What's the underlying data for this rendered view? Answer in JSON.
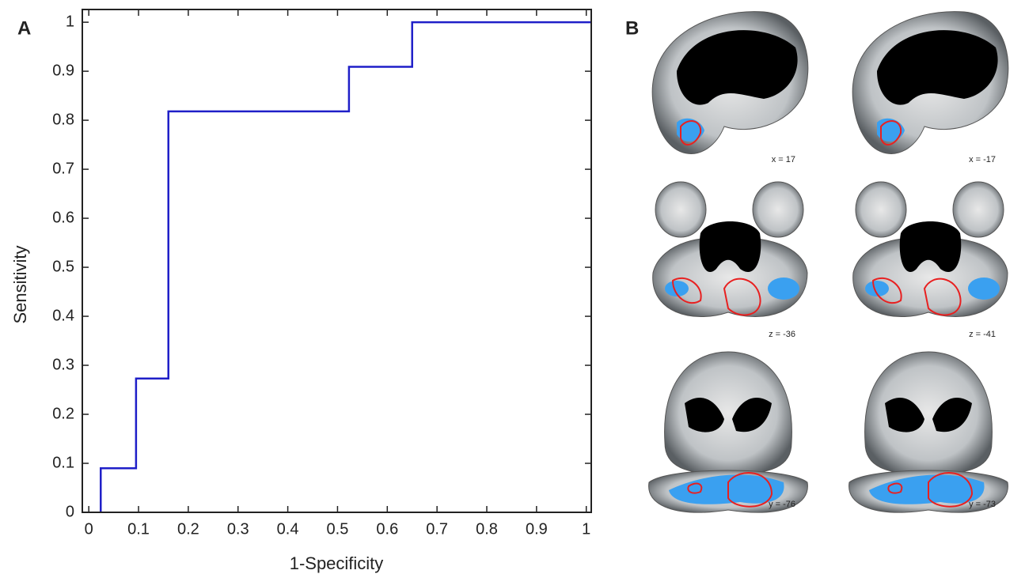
{
  "chart_data": {
    "type": "line",
    "panel_label": "A",
    "x_label": "1-Specificity",
    "y_label": "Sensitivity",
    "series": [
      {
        "color": "#1f1fc8",
        "x": [
          0.024,
          0.024,
          0.095,
          0.095,
          0.16,
          0.16,
          0.523,
          0.523,
          0.65,
          0.65,
          1.01
        ],
        "values": [
          0,
          0.09,
          0.09,
          0.273,
          0.273,
          0.818,
          0.818,
          0.909,
          0.909,
          1,
          1
        ]
      }
    ],
    "xlim": [
      -0.013,
      1.01
    ],
    "ylim": [
      0,
      1.026
    ],
    "xticks": [
      0,
      0.1,
      0.2,
      0.3,
      0.4,
      0.5,
      0.6,
      0.7,
      0.8,
      0.9,
      1
    ],
    "yticks": [
      0,
      0.1,
      0.2,
      0.3,
      0.4,
      0.5,
      0.6,
      0.7,
      0.8,
      0.9,
      1
    ]
  },
  "brain_panel": {
    "label": "B",
    "captions": [
      "x = 17",
      "x = -17",
      "z = -36",
      "z = -41",
      "y = -76",
      "y = -73"
    ]
  }
}
